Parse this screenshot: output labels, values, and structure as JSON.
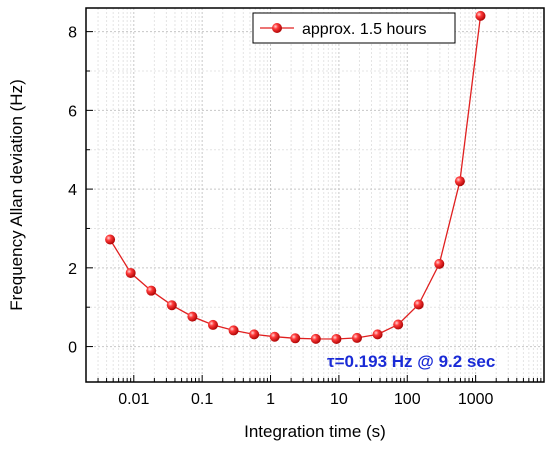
{
  "chart_data": {
    "type": "line",
    "title": "",
    "xlabel": "Integration time (s)",
    "ylabel": "Frequency Allan deviation (Hz)",
    "x_scale": "log",
    "xlim": [
      0.002,
      10000
    ],
    "ylim": [
      -0.9,
      8.6
    ],
    "x_ticks": [
      0.01,
      0.1,
      1,
      10,
      100,
      1000
    ],
    "x_tick_labels": [
      "0.01",
      "0.1",
      "1",
      "10",
      "100",
      "1000"
    ],
    "y_ticks": [
      0,
      2,
      4,
      6,
      8
    ],
    "y_tick_labels": [
      "0",
      "2",
      "4",
      "6",
      "8"
    ],
    "grid": true,
    "legend_position": "top-right",
    "series": [
      {
        "name": "approx. 1.5 hours",
        "color": "#e02020",
        "x": [
          0.0045,
          0.009,
          0.018,
          0.036,
          0.072,
          0.144,
          0.288,
          0.576,
          1.15,
          2.3,
          4.6,
          9.2,
          18.4,
          36.8,
          73.6,
          147,
          294,
          589,
          1178
        ],
        "y": [
          2.72,
          1.87,
          1.42,
          1.05,
          0.76,
          0.55,
          0.41,
          0.31,
          0.25,
          0.21,
          0.195,
          0.193,
          0.22,
          0.31,
          0.56,
          1.07,
          2.1,
          4.2,
          8.4
        ]
      }
    ],
    "annotation": {
      "text": "τ=0.193 Hz @ 9.2 sec",
      "color": "#1a2bd6"
    }
  }
}
